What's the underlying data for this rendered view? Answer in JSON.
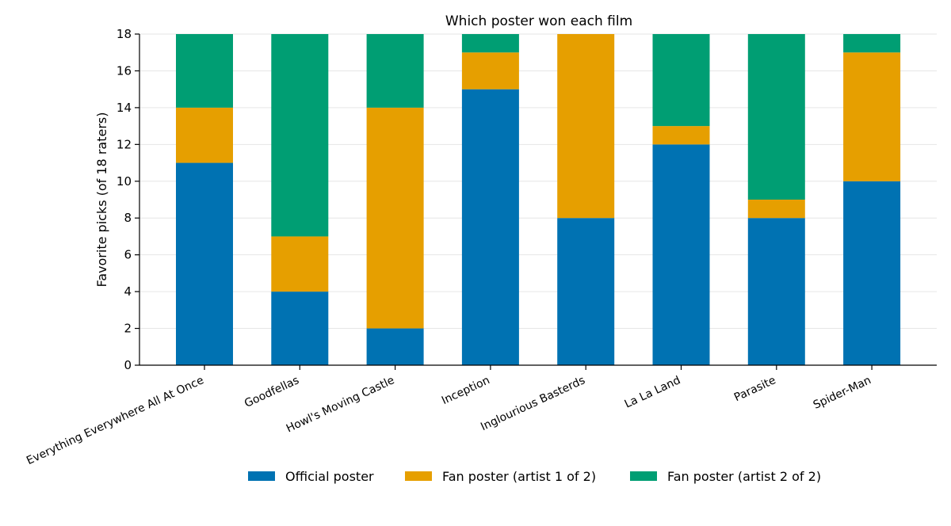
{
  "chart_data": {
    "type": "bar",
    "stacked": true,
    "title": "Which poster won each film",
    "xlabel": "",
    "ylabel": "Favorite picks (of 18 raters)",
    "ylim": [
      0,
      18
    ],
    "yticks": [
      0,
      2,
      4,
      6,
      8,
      10,
      12,
      14,
      16,
      18
    ],
    "grid": "y",
    "legend_position": "bottom",
    "categories": [
      "Everything Everywhere All At Once",
      "Goodfellas",
      "Howl's Moving Castle",
      "Inception",
      "Inglourious Basterds",
      "La La Land",
      "Parasite",
      "Spider-Man"
    ],
    "series": [
      {
        "name": "Official poster",
        "color": "#0072b2",
        "values": [
          11,
          4,
          2,
          15,
          8,
          12,
          8,
          10
        ]
      },
      {
        "name": "Fan poster (artist 1 of 2)",
        "color": "#e69f00",
        "values": [
          3,
          3,
          12,
          2,
          10,
          1,
          1,
          7
        ]
      },
      {
        "name": "Fan poster (artist 2 of 2)",
        "color": "#009e73",
        "values": [
          4,
          11,
          4,
          1,
          0,
          5,
          9,
          1
        ]
      }
    ]
  }
}
